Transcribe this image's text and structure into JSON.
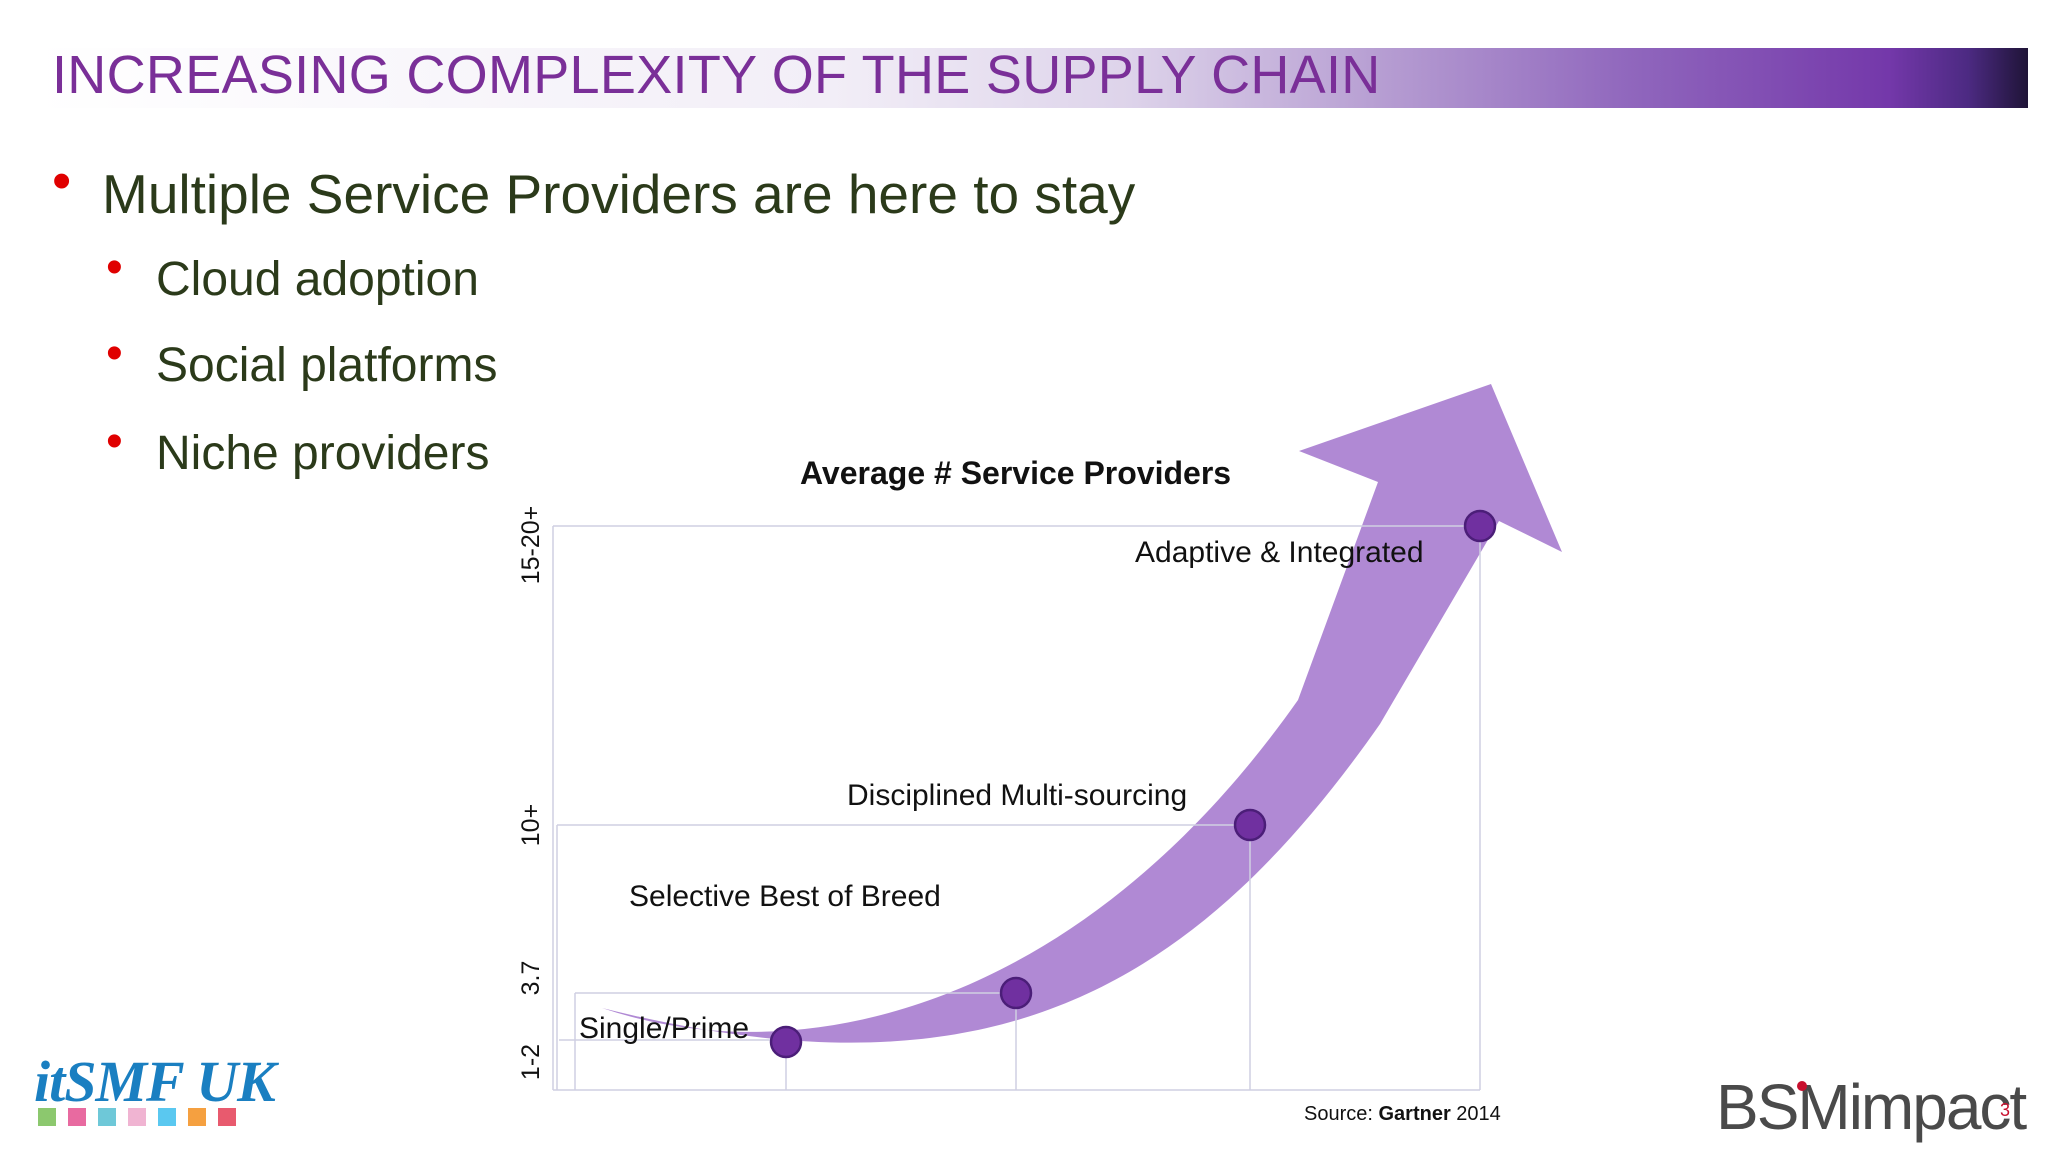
{
  "slide": {
    "title": "INCREASING COMPLEXITY OF THE SUPPLY CHAIN",
    "page_number": "3"
  },
  "bullets": {
    "main": "Multiple Service Providers are here to stay",
    "sub": [
      "Cloud adoption",
      "Social platforms",
      "Niche providers"
    ]
  },
  "chart_data": {
    "type": "line",
    "title": "Average # Service Providers",
    "xlabel": "",
    "ylabel": "",
    "y_tick_labels": [
      "1-2",
      "3.7",
      "10+",
      "15-20+"
    ],
    "categories": [
      "Single/Prime",
      "Selective Best of Breed",
      "Disciplined Multi-sourcing",
      "Adaptive & Integrated"
    ],
    "series": [
      {
        "values": [
          1.5,
          3.7,
          10,
          17.5
        ]
      }
    ],
    "source": {
      "prefix": "Source: ",
      "name": "Gartner",
      "year": " 2014"
    }
  },
  "logos": {
    "itsmf": "itSMF UK",
    "bsm": "BSMimpact",
    "swatch_colors": [
      "#8cc86e",
      "#e86aa0",
      "#6ec8d8",
      "#f0b4d2",
      "#5ac8f0",
      "#f5a040",
      "#e85a6e"
    ]
  },
  "colors": {
    "title": "#7a2f98",
    "bullet_dot": "#e00000",
    "arrow": "#a77ccf",
    "marker": "#7030a0",
    "marker_border": "#4b1e78"
  }
}
